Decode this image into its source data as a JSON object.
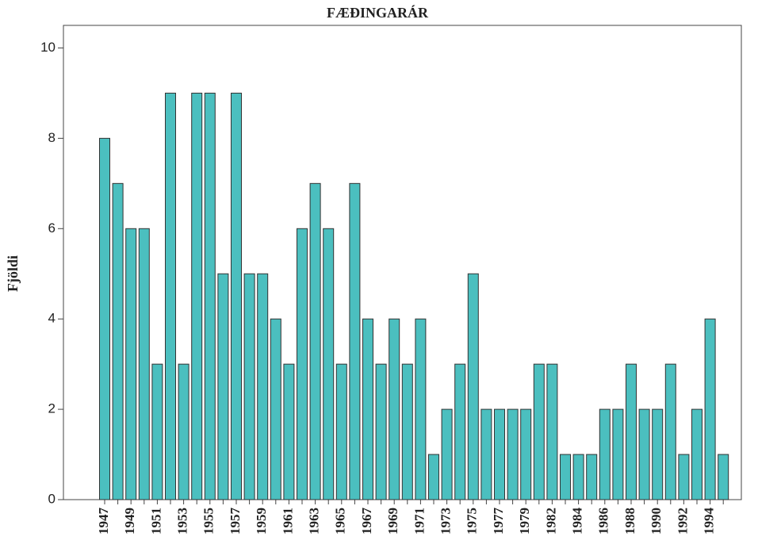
{
  "chart_data": {
    "type": "bar",
    "title": "FÆÐINGARÁR",
    "ylabel": "Fjöldi",
    "categories": [
      "1947",
      null,
      "1949",
      null,
      "1951",
      null,
      "1953",
      null,
      "1955",
      null,
      "1957",
      null,
      "1959",
      null,
      "1961",
      null,
      "1963",
      null,
      "1965",
      null,
      "1967",
      null,
      "1969",
      null,
      "1971",
      null,
      "1973",
      null,
      "1975",
      null,
      "1977",
      null,
      "1979",
      null,
      "1982",
      null,
      "1984",
      null,
      "1986",
      null,
      "1988",
      null,
      "1990",
      null,
      "1992",
      null,
      "1994",
      null
    ],
    "values": [
      8,
      7,
      6,
      6,
      3,
      9,
      3,
      9,
      9,
      5,
      9,
      5,
      5,
      4,
      3,
      6,
      7,
      6,
      3,
      7,
      4,
      3,
      4,
      3,
      4,
      1,
      2,
      3,
      5,
      2,
      2,
      2,
      2,
      3,
      3,
      1,
      1,
      1,
      2,
      2,
      3,
      2,
      2,
      3,
      1,
      2,
      4,
      1
    ],
    "color": "#4bbfbf",
    "ylim": [
      0,
      10.5
    ],
    "yticks": [
      0,
      2,
      4,
      6,
      8,
      10
    ],
    "grid": false
  }
}
